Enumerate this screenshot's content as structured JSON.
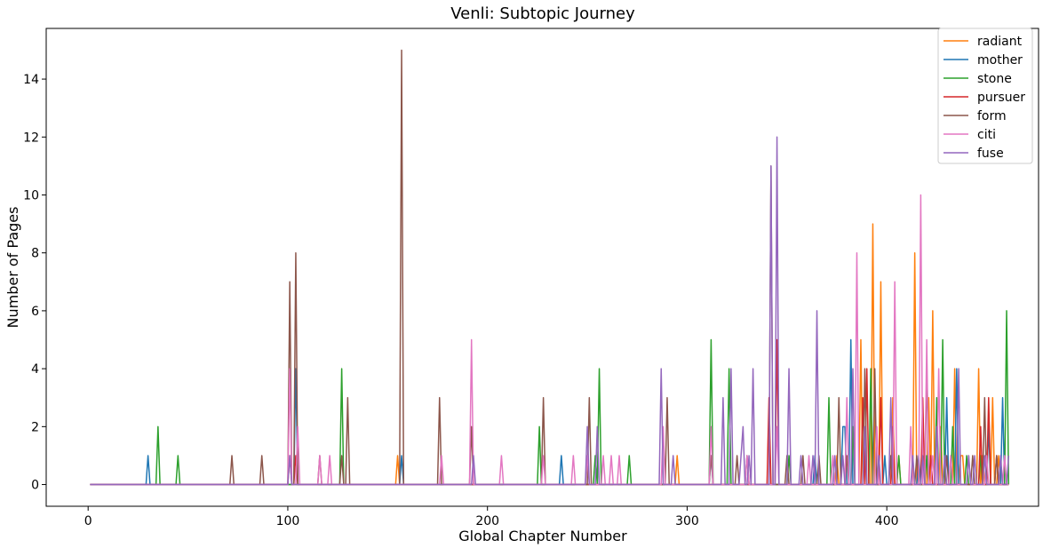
{
  "chart_data": {
    "type": "line",
    "title": "Venli: Subtopic Journey",
    "xlabel": "Global Chapter Number",
    "ylabel": "Number of Pages",
    "xlim": [
      -21,
      476
    ],
    "ylim": [
      -0.75,
      15.75
    ],
    "xticks": [
      0,
      100,
      200,
      300,
      400
    ],
    "yticks": [
      0,
      2,
      4,
      6,
      8,
      10,
      12,
      14
    ],
    "x_range": [
      1,
      461
    ],
    "grid": false,
    "legend_position": "top-right",
    "series": [
      {
        "name": "radiant",
        "color": "#ff7f0e",
        "spikes": [
          [
            155,
            1
          ],
          [
            295,
            1
          ],
          [
            375,
            1
          ],
          [
            387,
            5
          ],
          [
            393,
            9
          ],
          [
            397,
            7
          ],
          [
            403,
            3
          ],
          [
            406,
            1
          ],
          [
            414,
            8
          ],
          [
            421,
            3
          ],
          [
            423,
            6
          ],
          [
            427,
            2
          ],
          [
            434,
            4
          ],
          [
            437,
            1
          ],
          [
            438,
            1
          ],
          [
            446,
            4
          ],
          [
            448,
            1
          ],
          [
            453,
            3
          ],
          [
            456,
            1
          ]
        ]
      },
      {
        "name": "mother",
        "color": "#1f77b4",
        "spikes": [
          [
            30,
            1
          ],
          [
            104,
            4
          ],
          [
            157,
            1
          ],
          [
            237,
            1
          ],
          [
            312,
            1
          ],
          [
            364,
            1
          ],
          [
            378,
            2
          ],
          [
            379,
            2
          ],
          [
            382,
            5
          ],
          [
            399,
            1
          ],
          [
            416,
            1
          ],
          [
            430,
            3
          ],
          [
            435,
            4
          ],
          [
            451,
            2
          ],
          [
            458,
            3
          ]
        ]
      },
      {
        "name": "stone",
        "color": "#2ca02c",
        "spikes": [
          [
            35,
            2
          ],
          [
            45,
            1
          ],
          [
            127,
            4
          ],
          [
            226,
            2
          ],
          [
            254,
            1
          ],
          [
            256,
            4
          ],
          [
            271,
            1
          ],
          [
            312,
            5
          ],
          [
            321,
            4
          ],
          [
            351,
            1
          ],
          [
            371,
            3
          ],
          [
            383,
            2
          ],
          [
            392,
            4
          ],
          [
            406,
            1
          ],
          [
            420,
            1
          ],
          [
            425,
            3
          ],
          [
            428,
            5
          ],
          [
            433,
            2
          ],
          [
            440,
            1
          ],
          [
            447,
            1
          ],
          [
            460,
            6
          ]
        ]
      },
      {
        "name": "pursuer",
        "color": "#d62728",
        "spikes": [
          [
            101,
            1
          ],
          [
            104,
            1
          ],
          [
            341,
            3
          ],
          [
            345,
            5
          ],
          [
            388,
            3
          ],
          [
            390,
            4
          ],
          [
            397,
            3
          ],
          [
            403,
            2
          ],
          [
            418,
            3
          ],
          [
            422,
            1
          ],
          [
            447,
            2
          ],
          [
            451,
            3
          ],
          [
            455,
            1
          ]
        ]
      },
      {
        "name": "form",
        "color": "#8c564b",
        "spikes": [
          [
            72,
            1
          ],
          [
            87,
            1
          ],
          [
            101,
            7
          ],
          [
            104,
            8
          ],
          [
            116,
            1
          ],
          [
            127,
            1
          ],
          [
            130,
            3
          ],
          [
            157,
            15
          ],
          [
            176,
            3
          ],
          [
            192,
            2
          ],
          [
            228,
            3
          ],
          [
            251,
            3
          ],
          [
            290,
            3
          ],
          [
            312,
            1
          ],
          [
            325,
            1
          ],
          [
            330,
            1
          ],
          [
            342,
            11
          ],
          [
            350,
            1
          ],
          [
            358,
            1
          ],
          [
            366,
            1
          ],
          [
            376,
            3
          ],
          [
            380,
            1
          ],
          [
            389,
            4
          ],
          [
            394,
            4
          ],
          [
            402,
            1
          ],
          [
            415,
            1
          ],
          [
            420,
            4
          ],
          [
            430,
            1
          ],
          [
            443,
            1
          ],
          [
            449,
            3
          ],
          [
            455,
            1
          ]
        ]
      },
      {
        "name": "citi",
        "color": "#e377c2",
        "spikes": [
          [
            101,
            4
          ],
          [
            105,
            2
          ],
          [
            116,
            1
          ],
          [
            121,
            1
          ],
          [
            177,
            1
          ],
          [
            192,
            5
          ],
          [
            207,
            1
          ],
          [
            228,
            1
          ],
          [
            243,
            1
          ],
          [
            250,
            1
          ],
          [
            258,
            1
          ],
          [
            262,
            1
          ],
          [
            266,
            1
          ],
          [
            288,
            2
          ],
          [
            312,
            2
          ],
          [
            330,
            1
          ],
          [
            345,
            2
          ],
          [
            361,
            1
          ],
          [
            373,
            1
          ],
          [
            380,
            3
          ],
          [
            385,
            8
          ],
          [
            395,
            2
          ],
          [
            404,
            7
          ],
          [
            412,
            2
          ],
          [
            417,
            10
          ],
          [
            420,
            5
          ],
          [
            423,
            1
          ],
          [
            426,
            4
          ],
          [
            432,
            1
          ],
          [
            441,
            1
          ],
          [
            450,
            1
          ],
          [
            459,
            1
          ]
        ]
      },
      {
        "name": "fuse",
        "color": "#9467bd",
        "spikes": [
          [
            101,
            1
          ],
          [
            193,
            1
          ],
          [
            250,
            2
          ],
          [
            255,
            2
          ],
          [
            287,
            4
          ],
          [
            293,
            1
          ],
          [
            318,
            3
          ],
          [
            322,
            4
          ],
          [
            327,
            1
          ],
          [
            331,
            1
          ],
          [
            328,
            2
          ],
          [
            333,
            4
          ],
          [
            342,
            11
          ],
          [
            345,
            12
          ],
          [
            351,
            4
          ],
          [
            357,
            1
          ],
          [
            363,
            1
          ],
          [
            365,
            6
          ],
          [
            374,
            1
          ],
          [
            378,
            1
          ],
          [
            383,
            4
          ],
          [
            389,
            2
          ],
          [
            396,
            1
          ],
          [
            402,
            3
          ],
          [
            413,
            1
          ],
          [
            418,
            1
          ],
          [
            425,
            2
          ],
          [
            429,
            1
          ],
          [
            436,
            4
          ],
          [
            441,
            1
          ],
          [
            444,
            1
          ],
          [
            449,
            1
          ],
          [
            457,
            1
          ],
          [
            461,
            1
          ]
        ]
      }
    ]
  }
}
